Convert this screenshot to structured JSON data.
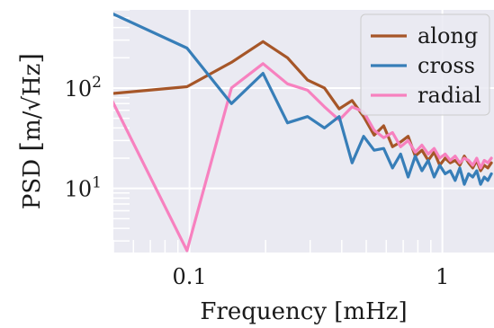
{
  "chart_data": {
    "type": "line",
    "xlabel": "Frequency [mHz]",
    "ylabel": "PSD",
    "ylabel_units": "m/√Hz",
    "x_scale": "log",
    "y_scale": "log",
    "xlim": [
      0.05,
      1.6
    ],
    "ylim": [
      2.3,
      600
    ],
    "x_ticks": [
      {
        "value": 0.1,
        "label": "0.1"
      },
      {
        "value": 1,
        "label": "1"
      }
    ],
    "y_ticks": [
      {
        "value": 10,
        "label": "10",
        "exp": "1"
      },
      {
        "value": 100,
        "label": "10",
        "exp": "2"
      }
    ],
    "grid": true,
    "legend_position": "top-right",
    "series": [
      {
        "name": "along",
        "color": "#a65628",
        "x": [
          0.0488,
          0.0977,
          0.1465,
          0.1953,
          0.2441,
          0.293,
          0.3418,
          0.3906,
          0.4395,
          0.4883,
          0.5371,
          0.5859,
          0.6348,
          0.6836,
          0.7324,
          0.7813,
          0.8301,
          0.8789,
          0.9277,
          0.9766,
          1.0254,
          1.0742,
          1.123,
          1.1719,
          1.2207,
          1.2695,
          1.3184,
          1.3672,
          1.416,
          1.4648,
          1.5137,
          1.5625
        ],
        "y": [
          88,
          103,
          180,
          290,
          200,
          120,
          100,
          62,
          75,
          52,
          34,
          42,
          26,
          29,
          33,
          21,
          24,
          19,
          23,
          17,
          20,
          18,
          19,
          17,
          21,
          18,
          16,
          19,
          15,
          17,
          16,
          18
        ]
      },
      {
        "name": "cross",
        "color": "#377eb8",
        "x": [
          0.0488,
          0.0977,
          0.1465,
          0.1953,
          0.2441,
          0.293,
          0.3418,
          0.3906,
          0.4395,
          0.4883,
          0.5371,
          0.5859,
          0.6348,
          0.6836,
          0.7324,
          0.7813,
          0.8301,
          0.8789,
          0.9277,
          0.9766,
          1.0254,
          1.0742,
          1.123,
          1.1719,
          1.2207,
          1.2695,
          1.3184,
          1.3672,
          1.416,
          1.4648,
          1.5137,
          1.5625
        ],
        "y": [
          560,
          250,
          70,
          140,
          45,
          52,
          40,
          52,
          18,
          33,
          24,
          25,
          16,
          22,
          13,
          21,
          15,
          19,
          13,
          17,
          14,
          15,
          12,
          16,
          11,
          14,
          13,
          15,
          11,
          13,
          12,
          14
        ]
      },
      {
        "name": "radial",
        "color": "#f781bf",
        "x": [
          0.0488,
          0.0977,
          0.1465,
          0.1953,
          0.2441,
          0.293,
          0.3418,
          0.3906,
          0.4395,
          0.4883,
          0.5371,
          0.5859,
          0.6348,
          0.6836,
          0.7324,
          0.7813,
          0.8301,
          0.8789,
          0.9277,
          0.9766,
          1.0254,
          1.0742,
          1.123,
          1.1719,
          1.2207,
          1.2695,
          1.3184,
          1.3672,
          1.416,
          1.4648,
          1.5137,
          1.5625
        ],
        "y": [
          80,
          2.4,
          100,
          175,
          110,
          95,
          65,
          48,
          65,
          58,
          38,
          32,
          36,
          26,
          30,
          23,
          27,
          22,
          25,
          20,
          22,
          19,
          21,
          18,
          20,
          19,
          17,
          20,
          16,
          19,
          18,
          20
        ]
      }
    ]
  }
}
